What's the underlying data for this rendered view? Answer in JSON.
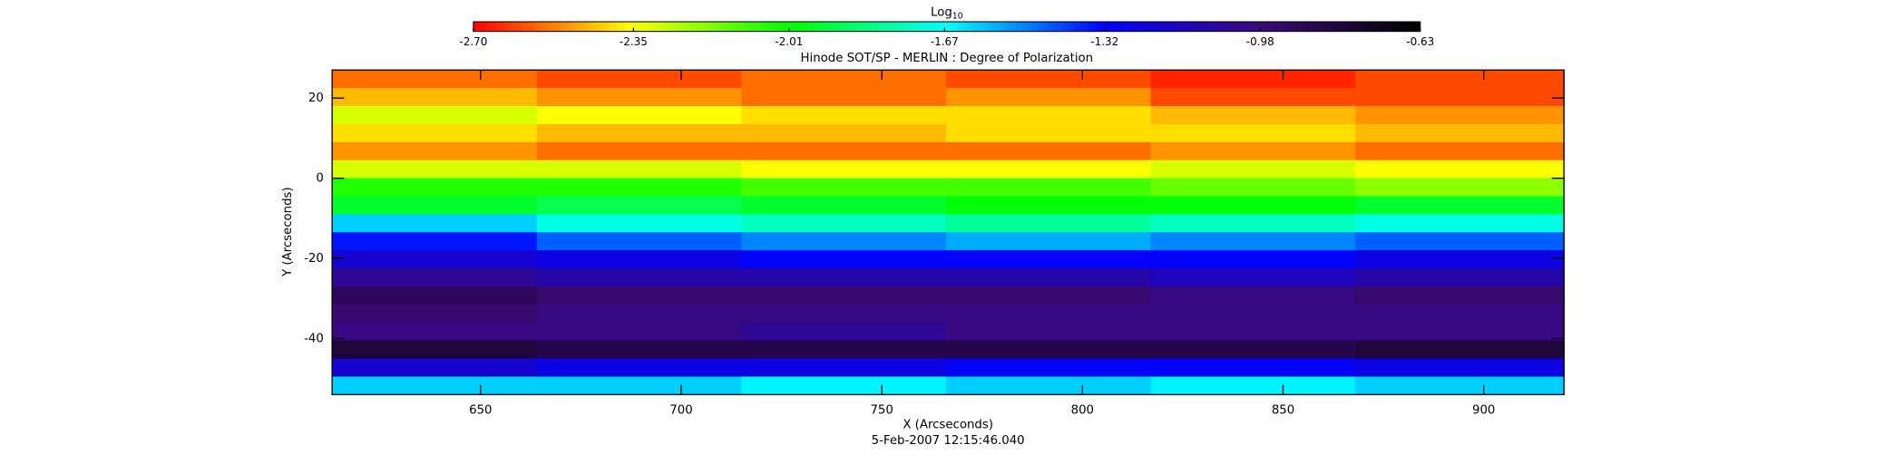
{
  "chart_data": {
    "type": "heatmap",
    "title": "Hinode SOT/SP - MERLIN : Degree of Polarization",
    "x_label": "X (Arcseconds)",
    "y_label": "Y (Arcseconds)",
    "footer": "5-Feb-2007 12:15:46.040",
    "colorbar_label": "Log",
    "colorbar_label_subscript": "10",
    "colormap": [
      "#ff0000",
      "#ffff00",
      "#00ff00",
      "#00ffff",
      "#0000ff",
      "#3c0a78",
      "#000000"
    ],
    "zlim": [
      -2.7,
      -0.63
    ],
    "zticks": [
      {
        "value": -2.7,
        "label": "-2.70"
      },
      {
        "value": -2.35,
        "label": "-2.35"
      },
      {
        "value": -2.01,
        "label": "-2.01"
      },
      {
        "value": -1.67,
        "label": "-1.67"
      },
      {
        "value": -1.32,
        "label": "-1.32"
      },
      {
        "value": -0.98,
        "label": "-0.98"
      },
      {
        "value": -0.63,
        "label": "-0.63"
      }
    ],
    "xlim": [
      613,
      920
    ],
    "ylim": [
      -54,
      27
    ],
    "xticks": [
      650,
      700,
      750,
      800,
      850,
      900
    ],
    "yticks": [
      -40,
      -20,
      0,
      20
    ],
    "x_bins": [
      613,
      664,
      715,
      766,
      817,
      868,
      920
    ],
    "y_bins": [
      27,
      22.5,
      18,
      13.5,
      9,
      4.5,
      0,
      -4.5,
      -9,
      -13.5,
      -18,
      -22.5,
      -27,
      -31.5,
      -36,
      -40.5,
      -45,
      -49.5,
      -54
    ],
    "z": [
      [
        -2.55,
        -2.6,
        -2.55,
        -2.6,
        -2.65,
        -2.6
      ],
      [
        -2.45,
        -2.5,
        -2.55,
        -2.5,
        -2.6,
        -2.6
      ],
      [
        -2.3,
        -2.35,
        -2.4,
        -2.4,
        -2.45,
        -2.5
      ],
      [
        -2.4,
        -2.45,
        -2.45,
        -2.4,
        -2.4,
        -2.45
      ],
      [
        -2.5,
        -2.55,
        -2.55,
        -2.55,
        -2.5,
        -2.55
      ],
      [
        -2.3,
        -2.3,
        -2.35,
        -2.35,
        -2.3,
        -2.35
      ],
      [
        -2.05,
        -2.05,
        -2.1,
        -2.1,
        -2.15,
        -2.2
      ],
      [
        -1.95,
        -1.9,
        -1.95,
        -2.0,
        -2.0,
        -1.95
      ],
      [
        -1.6,
        -1.7,
        -1.75,
        -1.8,
        -1.75,
        -1.7
      ],
      [
        -1.35,
        -1.45,
        -1.5,
        -1.55,
        -1.5,
        -1.45
      ],
      [
        -1.2,
        -1.25,
        -1.3,
        -1.3,
        -1.3,
        -1.25
      ],
      [
        -1.05,
        -1.1,
        -1.1,
        -1.1,
        -1.15,
        -1.1
      ],
      [
        -0.9,
        -0.95,
        -0.95,
        -0.95,
        -1.0,
        -0.95
      ],
      [
        -0.95,
        -1.0,
        -1.0,
        -1.0,
        -1.0,
        -1.0
      ],
      [
        -1.0,
        -1.0,
        -1.05,
        -1.0,
        -1.0,
        -1.0
      ],
      [
        -0.8,
        -0.85,
        -0.85,
        -0.85,
        -0.85,
        -0.8
      ],
      [
        -1.2,
        -1.25,
        -1.25,
        -1.3,
        -1.3,
        -1.25
      ],
      [
        -1.6,
        -1.6,
        -1.65,
        -1.6,
        -1.65,
        -1.6
      ]
    ]
  }
}
